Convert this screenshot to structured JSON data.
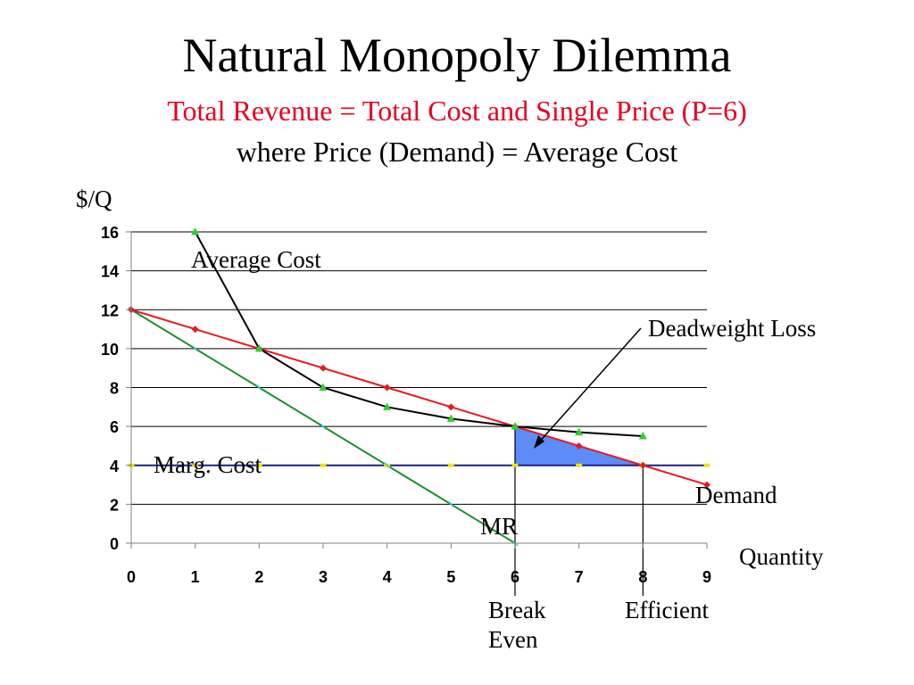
{
  "slide": {
    "title": "Natural Monopoly Dilemma",
    "subtitle": "Total Revenue = Total Cost and Single Price (P=6)",
    "subtitle2": "where Price (Demand) = Average Cost"
  },
  "colors": {
    "demand": "#e8191f",
    "average_cost": "#000000",
    "marginal_revenue": "#1f8f2f",
    "marginal_cost": "#1c1e8c",
    "deadweight_loss": "#5b8cf7",
    "ac_marker": "#2bd12b",
    "mr_marker": "#22cccc",
    "mc_marker": "#f2e600"
  },
  "chart_data": {
    "type": "line",
    "xlabel": "Quantity",
    "ylabel": "$/Q",
    "xlim": [
      0,
      9
    ],
    "ylim": [
      0,
      16
    ],
    "x_ticks": [
      0,
      1,
      2,
      3,
      4,
      5,
      6,
      7,
      8,
      9
    ],
    "y_ticks": [
      0,
      2,
      4,
      6,
      8,
      10,
      12,
      14,
      16
    ],
    "grid": "horizontal",
    "series": [
      {
        "key": "demand",
        "name": "Demand",
        "x": [
          0,
          1,
          2,
          3,
          4,
          5,
          6,
          7,
          8,
          9
        ],
        "y": [
          12,
          11,
          10,
          9,
          8,
          7,
          6,
          5,
          4,
          3
        ]
      },
      {
        "key": "average_cost",
        "name": "Average Cost",
        "x": [
          1,
          2,
          3,
          4,
          5,
          6,
          7,
          8
        ],
        "y": [
          16,
          10,
          8,
          7,
          6.4,
          6,
          5.7,
          5.5
        ]
      },
      {
        "key": "marginal_revenue",
        "name": "MR",
        "x": [
          0,
          1,
          2,
          3,
          4,
          5,
          6
        ],
        "y": [
          12,
          10,
          8,
          6,
          4,
          2,
          0
        ]
      },
      {
        "key": "marginal_cost",
        "name": "Marg. Cost",
        "x": [
          0,
          1,
          2,
          3,
          4,
          5,
          6,
          7,
          8,
          9
        ],
        "y": [
          4,
          4,
          4,
          4,
          4,
          4,
          4,
          4,
          4,
          4
        ]
      }
    ],
    "deadweight_loss": {
      "label": "Deadweight Loss",
      "vertices": [
        [
          6,
          6
        ],
        [
          6,
          4
        ],
        [
          8,
          4
        ]
      ]
    },
    "markers": {
      "break_even": {
        "label": "Break Even",
        "x": 6,
        "y": 6
      },
      "efficient": {
        "label": "Efficient",
        "x": 8,
        "y": 4
      }
    }
  }
}
